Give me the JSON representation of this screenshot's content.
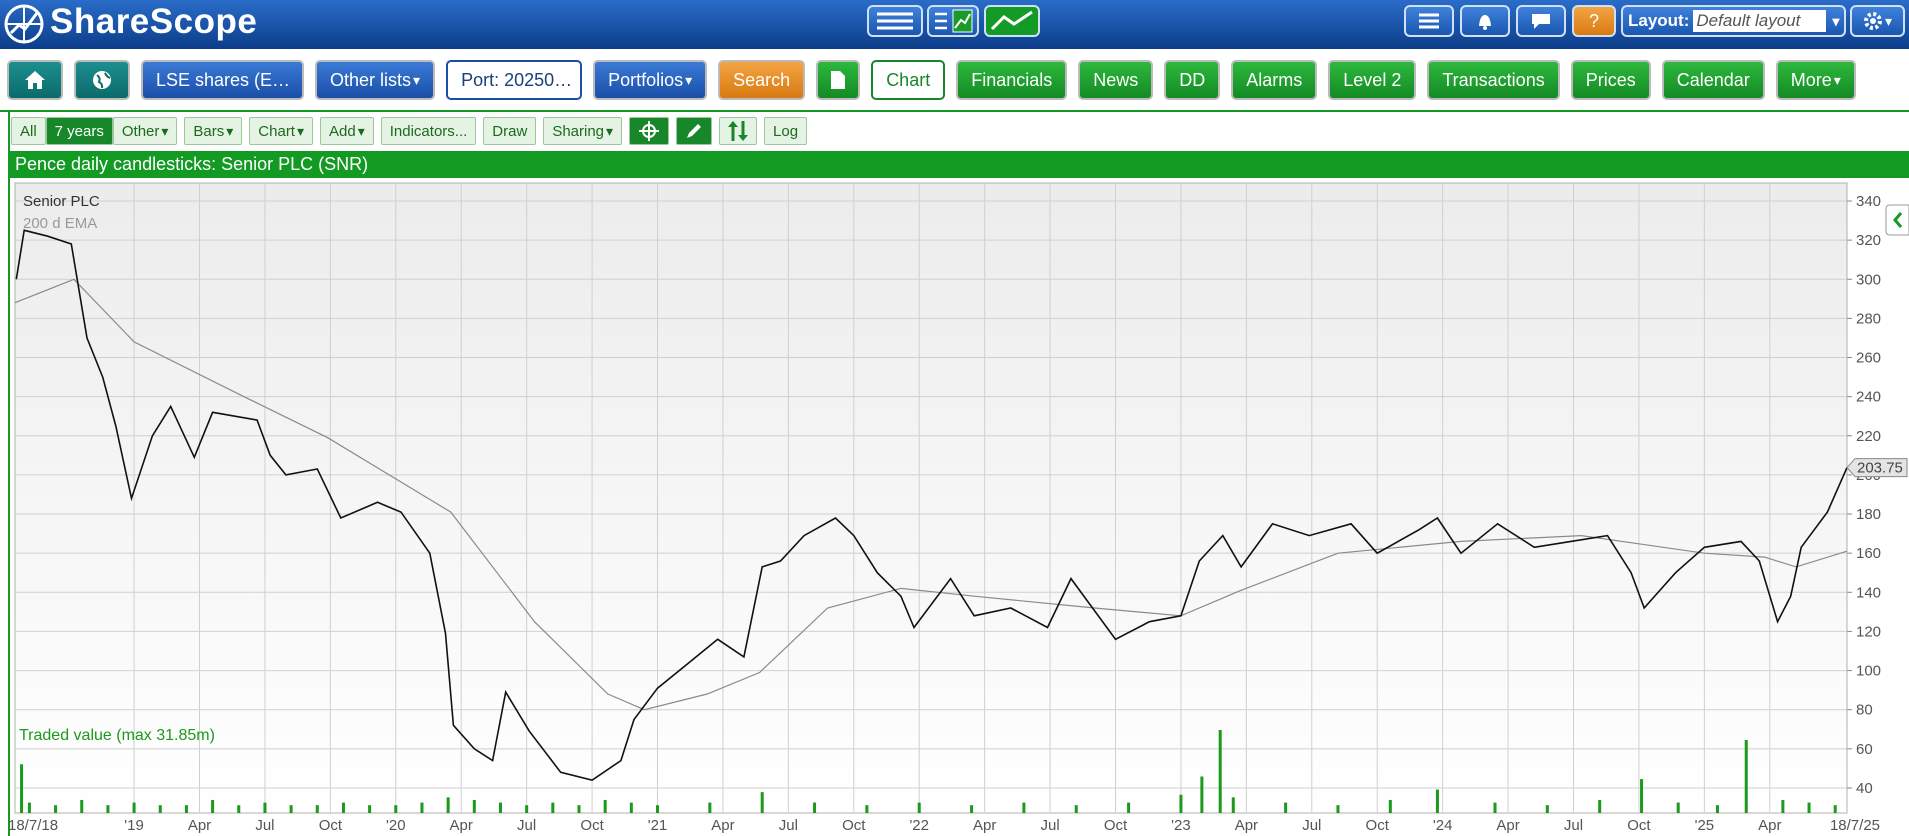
{
  "header": {
    "logo": "ShareScope",
    "help": "?",
    "layout_label": "Layout:",
    "layout_value": "Default layout"
  },
  "toolbar": {
    "items": [
      "LSE shares (E…",
      "Other lists",
      "Port: 20250…",
      "Portfolios",
      "Search",
      "Chart",
      "Financials",
      "News",
      "DD",
      "Alarms",
      "Level 2",
      "Transactions",
      "Prices",
      "Calendar",
      "More"
    ]
  },
  "chart_toolbar": {
    "items": [
      "All",
      "7 years",
      "Other",
      "Bars",
      "Chart",
      "Add",
      "Indicators...",
      "Draw",
      "Sharing",
      "Log"
    ]
  },
  "chart_data": {
    "type": "line",
    "title": "Pence daily candlesticks: Senior PLC (SNR)",
    "xlim": [
      2018.545,
      2025.545
    ],
    "xticks": [
      {
        "value": 2018.545,
        "label": "18/7/18"
      },
      {
        "value": 2019,
        "label": "'19"
      },
      {
        "value": 2019.25,
        "label": "Apr"
      },
      {
        "value": 2019.5,
        "label": "Jul"
      },
      {
        "value": 2019.75,
        "label": "Oct"
      },
      {
        "value": 2020,
        "label": "'20"
      },
      {
        "value": 2020.25,
        "label": "Apr"
      },
      {
        "value": 2020.5,
        "label": "Jul"
      },
      {
        "value": 2020.75,
        "label": "Oct"
      },
      {
        "value": 2021,
        "label": "'21"
      },
      {
        "value": 2021.25,
        "label": "Apr"
      },
      {
        "value": 2021.5,
        "label": "Jul"
      },
      {
        "value": 2021.75,
        "label": "Oct"
      },
      {
        "value": 2022,
        "label": "'22"
      },
      {
        "value": 2022.25,
        "label": "Apr"
      },
      {
        "value": 2022.5,
        "label": "Jul"
      },
      {
        "value": 2022.75,
        "label": "Oct"
      },
      {
        "value": 2023,
        "label": "'23"
      },
      {
        "value": 2023.25,
        "label": "Apr"
      },
      {
        "value": 2023.5,
        "label": "Jul"
      },
      {
        "value": 2023.75,
        "label": "Oct"
      },
      {
        "value": 2024,
        "label": "'24"
      },
      {
        "value": 2024.25,
        "label": "Apr"
      },
      {
        "value": 2024.5,
        "label": "Jul"
      },
      {
        "value": 2024.75,
        "label": "Oct"
      },
      {
        "value": 2025,
        "label": "'25"
      },
      {
        "value": 2025.25,
        "label": "Apr"
      },
      {
        "value": 2025.545,
        "label": "18/7/25"
      }
    ],
    "ylim": [
      27.2,
      349.2
    ],
    "yticks": [
      40,
      60,
      80,
      100,
      120,
      140,
      160,
      180,
      200,
      220,
      240,
      260,
      280,
      300,
      320,
      340
    ],
    "grid": true,
    "series": [
      {
        "name": "Senior PLC",
        "color": "#111111",
        "x": [
          2018.55,
          2018.58,
          2018.67,
          2018.76,
          2018.82,
          2018.88,
          2018.93,
          2018.99,
          2019.07,
          2019.14,
          2019.23,
          2019.3,
          2019.47,
          2019.52,
          2019.58,
          2019.7,
          2019.79,
          2019.93,
          2020.02,
          2020.13,
          2020.19,
          2020.22,
          2020.3,
          2020.37,
          2020.42,
          2020.51,
          2020.63,
          2020.75,
          2020.86,
          2020.91,
          2021.0,
          2021.12,
          2021.23,
          2021.33,
          2021.4,
          2021.47,
          2021.56,
          2021.68,
          2021.75,
          2021.84,
          2021.93,
          2021.98,
          2022.12,
          2022.21,
          2022.35,
          2022.49,
          2022.58,
          2022.75,
          2022.88,
          2023.0,
          2023.07,
          2023.16,
          2023.23,
          2023.35,
          2023.49,
          2023.65,
          2023.75,
          2023.91,
          2023.98,
          2024.07,
          2024.21,
          2024.35,
          2024.49,
          2024.63,
          2024.72,
          2024.77,
          2024.89,
          2025.0,
          2025.14,
          2025.21,
          2025.28,
          2025.33,
          2025.37,
          2025.47,
          2025.545
        ],
        "values": [
          300,
          325,
          322,
          318,
          270,
          250,
          225,
          188,
          220,
          235,
          209,
          232,
          228,
          210,
          200,
          203,
          178,
          186,
          181,
          160,
          119,
          72,
          60,
          54,
          89,
          69,
          48,
          44,
          54,
          75,
          91,
          104,
          116,
          107,
          153,
          156,
          169,
          178,
          169,
          150,
          138,
          122,
          147,
          128,
          132,
          122,
          147,
          116,
          125,
          128,
          156,
          169,
          153,
          175,
          169,
          175,
          160,
          172,
          178,
          160,
          175,
          163,
          166,
          169,
          150,
          132,
          150,
          163,
          166,
          156,
          125,
          138,
          163,
          181,
          203.75
        ]
      },
      {
        "name": "200 d EMA",
        "color": "#8a8a8a",
        "x": [
          2018.545,
          2018.77,
          2019.0,
          2019.42,
          2019.74,
          2020.21,
          2020.53,
          2020.81,
          2020.95,
          2021.19,
          2021.39,
          2021.65,
          2021.93,
          2022.21,
          2022.67,
          2023.0,
          2023.23,
          2023.6,
          2024.07,
          2024.53,
          2025.0,
          2025.23,
          2025.35,
          2025.545
        ],
        "values": [
          288,
          300,
          268,
          240,
          219,
          181,
          125,
          88,
          80,
          88,
          99,
          132,
          142,
          138,
          132,
          128,
          141,
          160,
          166,
          169,
          160,
          158,
          153,
          161
        ]
      }
    ],
    "volume": {
      "name": "Traded value (max 31.85m)",
      "color": "#1b9a1b",
      "x": [
        2018.57,
        2018.6,
        2018.7,
        2018.8,
        2018.9,
        2019.0,
        2019.1,
        2019.2,
        2019.3,
        2019.4,
        2019.5,
        2019.6,
        2019.7,
        2019.8,
        2019.9,
        2020.0,
        2020.1,
        2020.2,
        2020.3,
        2020.4,
        2020.5,
        2020.6,
        2020.7,
        2020.8,
        2020.9,
        2021.0,
        2021.2,
        2021.4,
        2021.6,
        2021.8,
        2022.0,
        2022.2,
        2022.4,
        2022.6,
        2022.8,
        2023.0,
        2023.08,
        2023.15,
        2023.2,
        2023.4,
        2023.6,
        2023.8,
        2023.98,
        2024.2,
        2024.4,
        2024.6,
        2024.76,
        2024.9,
        2025.05,
        2025.16,
        2025.3,
        2025.4,
        2025.5
      ],
      "values": [
        18.7,
        4,
        3,
        5,
        3,
        4,
        3,
        3,
        5,
        3,
        4,
        3,
        3,
        4,
        3,
        3,
        4,
        6,
        5,
        4,
        3,
        4,
        3,
        5,
        4,
        3,
        4,
        8,
        4,
        3,
        4,
        3,
        4,
        3,
        4,
        7,
        14,
        31.85,
        6,
        4,
        3,
        5,
        9,
        4,
        3,
        5,
        13,
        4,
        3,
        28,
        5,
        4,
        3
      ]
    }
  }
}
